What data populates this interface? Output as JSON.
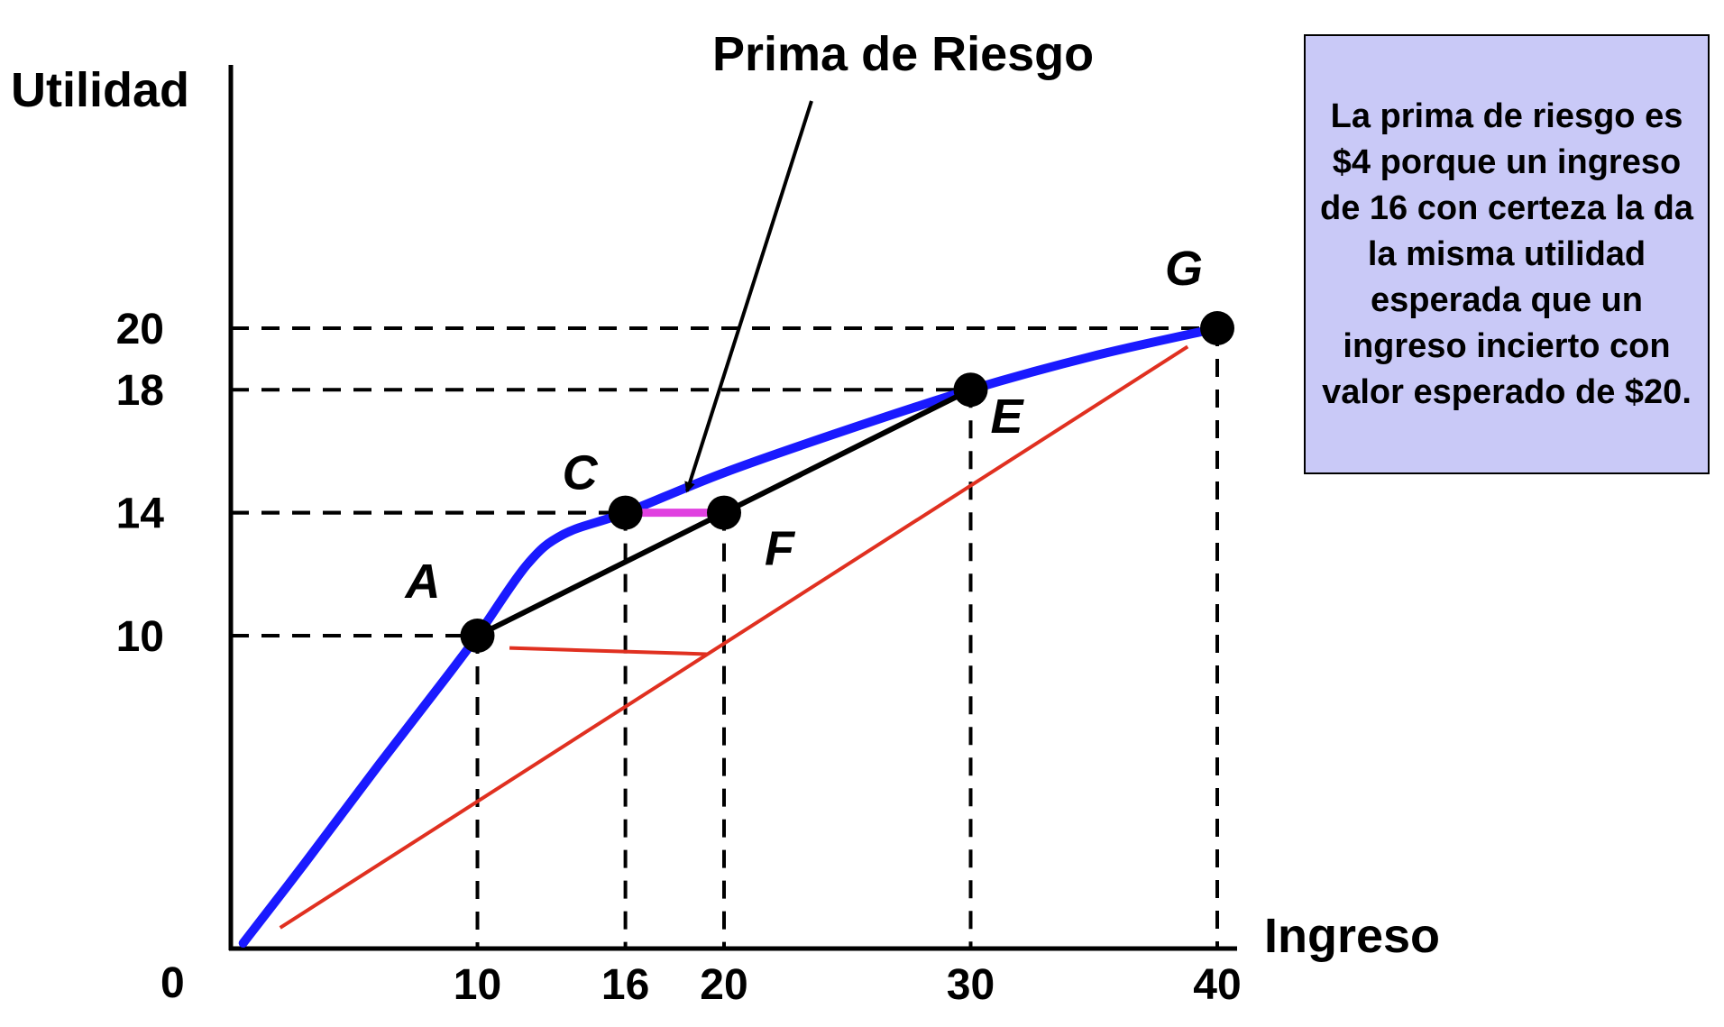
{
  "chart_data": {
    "type": "line",
    "title": "Prima de Riesgo",
    "xlabel": "Ingreso",
    "ylabel": "Utilidad",
    "xlim": [
      0,
      40
    ],
    "ylim": [
      0,
      20
    ],
    "origin_label": "0",
    "x_ticks": [
      {
        "value": 10,
        "label": "10"
      },
      {
        "value": 16,
        "label": "16"
      },
      {
        "value": 20,
        "label": "20"
      },
      {
        "value": 30,
        "label": "30"
      },
      {
        "value": 40,
        "label": "40"
      }
    ],
    "y_ticks": [
      {
        "value": 10,
        "label": "10"
      },
      {
        "value": 14,
        "label": "14"
      },
      {
        "value": 18,
        "label": "18"
      },
      {
        "value": 20,
        "label": "20"
      }
    ],
    "utility_curve": {
      "color": "#1a1aff",
      "points": [
        [
          0.5,
          0
        ],
        [
          3,
          2.6
        ],
        [
          6,
          5.8
        ],
        [
          8.5,
          8.4
        ],
        [
          10,
          10
        ],
        [
          12,
          12.3
        ],
        [
          13.5,
          13.3
        ],
        [
          16,
          14
        ],
        [
          20,
          15.3
        ],
        [
          25,
          16.7
        ],
        [
          30,
          18
        ],
        [
          35,
          19.1
        ],
        [
          40,
          20
        ]
      ]
    },
    "points": [
      {
        "label": "A",
        "x": 10,
        "y": 10
      },
      {
        "label": "C",
        "x": 16,
        "y": 14
      },
      {
        "label": "F",
        "x": 20,
        "y": 14
      },
      {
        "label": "E",
        "x": 30,
        "y": 18
      },
      {
        "label": "G",
        "x": 40,
        "y": 20
      }
    ],
    "chord": {
      "from": [
        10,
        10
      ],
      "to": [
        30,
        18
      ],
      "color": "#000000"
    },
    "risk_premium_segment": {
      "from": [
        16,
        14
      ],
      "to": [
        20,
        14
      ],
      "color": "#e040e0"
    },
    "red_lines": {
      "color": "#e03020",
      "segments": [
        [
          [
            2,
            0.5
          ],
          [
            38.8,
            19.4
          ]
        ],
        [
          [
            11.3,
            9.6
          ],
          [
            19.3,
            9.4
          ]
        ]
      ]
    },
    "annotation": {
      "text": "Prima de Riesgo",
      "points_to": [
        18.5,
        14.7
      ]
    },
    "note": "La prima de riesgo es $4 porque un ingreso de 16 con certeza la da la misma utilidad esperada que un ingreso incierto con valor esperado de $20.",
    "note_color": "#c9c9f7",
    "grid": false,
    "legend": "none"
  }
}
